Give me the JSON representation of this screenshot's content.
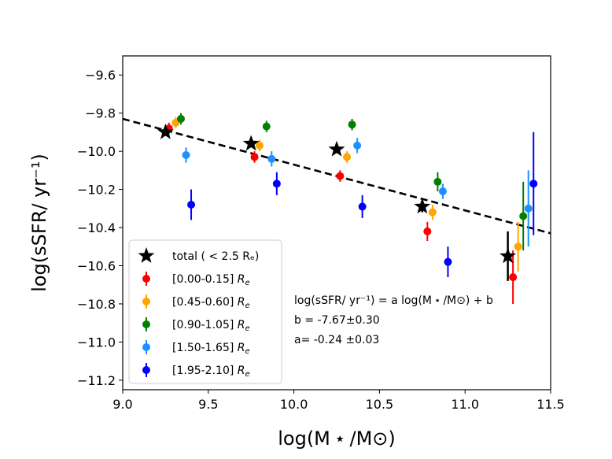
{
  "chart_data": {
    "type": "scatter",
    "xlabel": "log(M ⋆ /M⊙)",
    "ylabel": "log(sSFR/ yr⁻¹)",
    "xlim": [
      9.0,
      11.5
    ],
    "ylim": [
      -11.25,
      -9.5
    ],
    "xticks": [
      9.0,
      9.5,
      10.0,
      10.5,
      11.0,
      11.5
    ],
    "xtick_labels": [
      "9.0",
      "9.5",
      "10.0",
      "10.5",
      "11.0",
      "11.5"
    ],
    "yticks": [
      -9.6,
      -9.8,
      -10.0,
      -10.2,
      -10.4,
      -10.6,
      -10.8,
      -11.0,
      -11.2
    ],
    "ytick_labels": [
      "−9.6",
      "−9.8",
      "−10.0",
      "−10.2",
      "−10.4",
      "−10.6",
      "−10.8",
      "−11.0",
      "−11.2"
    ],
    "fit_line": {
      "a": -0.24,
      "b": -7.67,
      "x_range": [
        9.0,
        11.5
      ],
      "color": "#000000",
      "style": "dashed"
    },
    "total": {
      "label": "total ( < 2.5 Rₑ)",
      "color": "#000000",
      "points": [
        {
          "x": 9.25,
          "y": -9.9,
          "err": 0.02
        },
        {
          "x": 9.75,
          "y": -9.96,
          "err": 0.02
        },
        {
          "x": 10.25,
          "y": -9.99,
          "err": 0.02
        },
        {
          "x": 10.75,
          "y": -10.29,
          "err": 0.03
        },
        {
          "x": 11.25,
          "y": -10.55,
          "err": 0.13
        }
      ]
    },
    "series": [
      {
        "name": "[0.00-0.15]",
        "color": "#ff0000",
        "points": [
          {
            "x": 9.27,
            "y": -9.88,
            "err": 0.03
          },
          {
            "x": 9.77,
            "y": -10.03,
            "err": 0.03
          },
          {
            "x": 10.27,
            "y": -10.13,
            "err": 0.03
          },
          {
            "x": 10.78,
            "y": -10.42,
            "err": 0.05
          },
          {
            "x": 11.28,
            "y": -10.66,
            "err": 0.14
          }
        ]
      },
      {
        "name": "[0.45-0.60]",
        "color": "#ffa500",
        "points": [
          {
            "x": 9.31,
            "y": -9.85,
            "err": 0.03
          },
          {
            "x": 9.8,
            "y": -9.97,
            "err": 0.03
          },
          {
            "x": 10.31,
            "y": -10.03,
            "err": 0.03
          },
          {
            "x": 10.81,
            "y": -10.32,
            "err": 0.04
          },
          {
            "x": 11.31,
            "y": -10.5,
            "err": 0.13
          }
        ]
      },
      {
        "name": "[0.90-1.05]",
        "color": "#008000",
        "points": [
          {
            "x": 9.34,
            "y": -9.83,
            "err": 0.03
          },
          {
            "x": 9.84,
            "y": -9.87,
            "err": 0.03
          },
          {
            "x": 10.34,
            "y": -9.86,
            "err": 0.03
          },
          {
            "x": 10.84,
            "y": -10.16,
            "err": 0.05
          },
          {
            "x": 11.34,
            "y": -10.34,
            "err": 0.18
          }
        ]
      },
      {
        "name": "[1.50-1.65]",
        "color": "#1e90ff",
        "points": [
          {
            "x": 9.37,
            "y": -10.02,
            "err": 0.04
          },
          {
            "x": 9.87,
            "y": -10.04,
            "err": 0.04
          },
          {
            "x": 10.37,
            "y": -9.97,
            "err": 0.04
          },
          {
            "x": 10.87,
            "y": -10.21,
            "err": 0.04
          },
          {
            "x": 11.37,
            "y": -10.3,
            "err": 0.2
          }
        ]
      },
      {
        "name": "[1.95-2.10]",
        "color": "#0000ff",
        "points": [
          {
            "x": 9.4,
            "y": -10.28,
            "err": 0.08
          },
          {
            "x": 9.9,
            "y": -10.17,
            "err": 0.06
          },
          {
            "x": 10.4,
            "y": -10.29,
            "err": 0.06
          },
          {
            "x": 10.9,
            "y": -10.58,
            "err": 0.08
          },
          {
            "x": 11.4,
            "y": -10.17,
            "err": 0.27
          }
        ]
      }
    ],
    "legend": {
      "placement": "lower-left",
      "re_suffix": "R",
      "re_sub": "e"
    },
    "annotation": {
      "line1": "log(sSFR/ yr⁻¹) = a log(M ⋆ /M⊙) + b",
      "line2": "b = -7.67±0.30",
      "line3": "a= -0.24 ±0.03"
    }
  }
}
